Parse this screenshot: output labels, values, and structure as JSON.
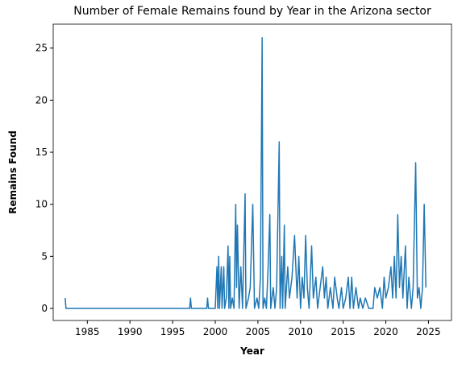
{
  "chart_data": {
    "type": "line",
    "title": "Number of Female Remains found by Year in the Arizona sector",
    "xlabel": "Year",
    "ylabel": "Remains Found",
    "x": [
      1982.4,
      1982.5,
      1997.0,
      1997.1,
      1997.2,
      1999.0,
      1999.1,
      1999.2,
      2000.0,
      2000.2,
      2000.3,
      2000.4,
      2000.5,
      2000.7,
      2000.8,
      2001.0,
      2001.1,
      2001.3,
      2001.5,
      2001.6,
      2001.7,
      2001.8,
      2002.0,
      2002.2,
      2002.4,
      2002.5,
      2002.6,
      2002.8,
      2003.0,
      2003.2,
      2003.5,
      2003.6,
      2003.9,
      2004.1,
      2004.4,
      2004.6,
      2004.9,
      2005.1,
      2005.3,
      2005.5,
      2005.6,
      2005.8,
      2006.0,
      2006.2,
      2006.4,
      2006.5,
      2006.8,
      2007.0,
      2007.2,
      2007.5,
      2007.6,
      2007.8,
      2007.9,
      2008.1,
      2008.2,
      2008.5,
      2008.7,
      2009.0,
      2009.3,
      2009.6,
      2009.8,
      2010.0,
      2010.2,
      2010.4,
      2010.6,
      2010.8,
      2011.0,
      2011.3,
      2011.5,
      2011.8,
      2012.0,
      2012.3,
      2012.6,
      2012.8,
      2013.0,
      2013.2,
      2013.5,
      2013.8,
      2014.0,
      2014.3,
      2014.5,
      2014.8,
      2015.0,
      2015.3,
      2015.6,
      2015.8,
      2016.0,
      2016.2,
      2016.5,
      2016.8,
      2017.0,
      2017.3,
      2017.6,
      2018.0,
      2018.5,
      2018.7,
      2019.0,
      2019.3,
      2019.6,
      2019.8,
      2020.0,
      2020.3,
      2020.6,
      2020.8,
      2021.0,
      2021.2,
      2021.4,
      2021.6,
      2021.8,
      2022.0,
      2022.3,
      2022.5,
      2022.7,
      2023.0,
      2023.2,
      2023.5,
      2023.7,
      2023.9,
      2024.1,
      2024.3,
      2024.5,
      2024.7
    ],
    "series": [
      {
        "name": "Remains Found",
        "color": "#1f77b4",
        "values": [
          1,
          0,
          0,
          1,
          0,
          0,
          1,
          0,
          0,
          4,
          0,
          5,
          0,
          4,
          0,
          4,
          0,
          1,
          6,
          0,
          5,
          0,
          1,
          0,
          10,
          2,
          8,
          0,
          4,
          0,
          11,
          0,
          1,
          2,
          10,
          0,
          1,
          0,
          3,
          26,
          0,
          1,
          0,
          4,
          9,
          0,
          2,
          0,
          2,
          16,
          0,
          5,
          0,
          8,
          0,
          4,
          1,
          3,
          7,
          1,
          5,
          0,
          3,
          1,
          7,
          2,
          0,
          6,
          1,
          3,
          0,
          2,
          4,
          1,
          3,
          0,
          2,
          0,
          3,
          1,
          0,
          2,
          0,
          1,
          3,
          0,
          3,
          0,
          2,
          0,
          1,
          0,
          1,
          0,
          0,
          2,
          1,
          2,
          0,
          3,
          1,
          2,
          4,
          1,
          5,
          1,
          9,
          2,
          5,
          1,
          6,
          0,
          3,
          0,
          2,
          14,
          1,
          2,
          0,
          2,
          10,
          2
        ]
      }
    ],
    "xlim": [
      1981.0,
      2027.7
    ],
    "ylim": [
      -1.16,
      27.3
    ],
    "xticks": [
      1985,
      1990,
      1995,
      2000,
      2005,
      2010,
      2015,
      2020,
      2025
    ],
    "yticks": [
      0,
      5,
      10,
      15,
      20,
      25
    ]
  }
}
